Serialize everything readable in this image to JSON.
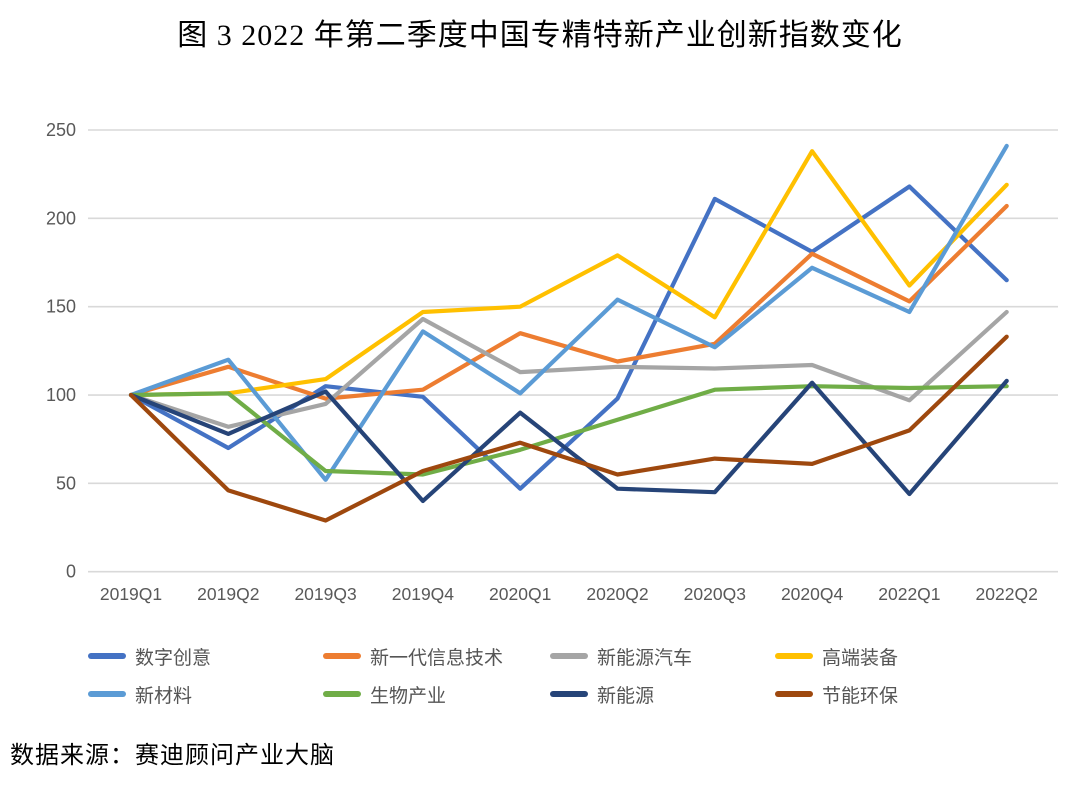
{
  "figure": {
    "title": "图 3 2022 年第二季度中国专精特新产业创新指数变化",
    "source_note": "数据来源：赛迪顾问产业大脑"
  },
  "chart_data": {
    "type": "line",
    "title": "图 3 2022 年第二季度中国专精特新产业创新指数变化",
    "categories": [
      "2019Q1",
      "2019Q2",
      "2019Q3",
      "2019Q4",
      "2020Q1",
      "2020Q2",
      "2020Q3",
      "2020Q4",
      "2022Q1",
      "2022Q2"
    ],
    "series": [
      {
        "name": "数字创意",
        "color": "#4472C4",
        "values": [
          100,
          70,
          105,
          99,
          47,
          98,
          211,
          181,
          218,
          165
        ]
      },
      {
        "name": "新一代信息技术",
        "color": "#ED7D31",
        "values": [
          100,
          116,
          98,
          103,
          135,
          119,
          129,
          180,
          153,
          207
        ]
      },
      {
        "name": "新能源汽车",
        "color": "#A5A5A5",
        "values": [
          100,
          82,
          95,
          143,
          113,
          116,
          115,
          117,
          97,
          147
        ]
      },
      {
        "name": "高端装备",
        "color": "#FFC000",
        "values": [
          100,
          101,
          109,
          147,
          150,
          179,
          144,
          238,
          162,
          219
        ]
      },
      {
        "name": "新材料",
        "color": "#5B9BD5",
        "values": [
          100,
          120,
          52,
          136,
          101,
          154,
          127,
          172,
          147,
          241
        ]
      },
      {
        "name": "生物产业",
        "color": "#70AD47",
        "values": [
          100,
          101,
          57,
          55,
          69,
          86,
          103,
          105,
          104,
          105
        ]
      },
      {
        "name": "新能源",
        "color": "#264478",
        "values": [
          100,
          78,
          102,
          40,
          90,
          47,
          45,
          107,
          44,
          108
        ]
      },
      {
        "name": "节能环保",
        "color": "#9E480E",
        "values": [
          100,
          46,
          29,
          57,
          73,
          55,
          64,
          61,
          80,
          133
        ]
      }
    ],
    "ylim": [
      0,
      250
    ],
    "yticks": [
      0,
      50,
      100,
      150,
      200,
      250
    ],
    "grid": "horizontal-only",
    "gridline_color": "#D9D9D9",
    "axis_label_color": "#595959",
    "legend_position": "bottom",
    "legend_rows": [
      [
        "数字创意",
        "新一代信息技术",
        "新能源汽车",
        "高端装备"
      ],
      [
        "新材料",
        "生物产业",
        "新能源",
        "节能环保"
      ]
    ]
  }
}
